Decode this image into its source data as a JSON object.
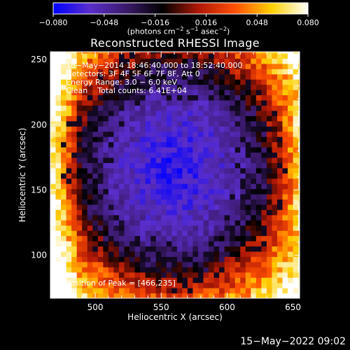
{
  "chart_data": {
    "type": "heatmap",
    "title": "Reconstructed RHESSI Image",
    "xlabel": "Heliocentric X (arcsec)",
    "ylabel": "Heliocentric Y (arcsec)",
    "xlim": [
      466,
      655
    ],
    "ylim": [
      67,
      256
    ],
    "xticks": [
      500,
      550,
      600,
      650
    ],
    "yticks": [
      100,
      150,
      200,
      250
    ],
    "colorbar": {
      "label": "(photons cm⁻² s⁻¹ asec⁻²)",
      "range": [
        -0.08,
        0.08
      ],
      "ticks": [
        "−0.080",
        "−0.048",
        "−0.016",
        "0.016",
        "0.048",
        "0.080"
      ],
      "colors": [
        "#0000ff",
        "#5a2ecc",
        "#3b1a6b",
        "#000000",
        "#b01808",
        "#ff5000",
        "#ffd000",
        "#ffffff"
      ]
    },
    "annotations": [
      "18−May−2014 18:46:40.000 to 18:52:40.000",
      "Detectors: 3F 4F 5F 6F 7F 8F, Att 0",
      "Energy Range: 3.0 − 6.0 keV",
      "Clean    Total counts: 6.41E+04"
    ],
    "peak_label": "Position of Peak = [466,235]",
    "peak": [
      466,
      235
    ]
  },
  "footer_timestamp": "15−May−2022 09:02"
}
